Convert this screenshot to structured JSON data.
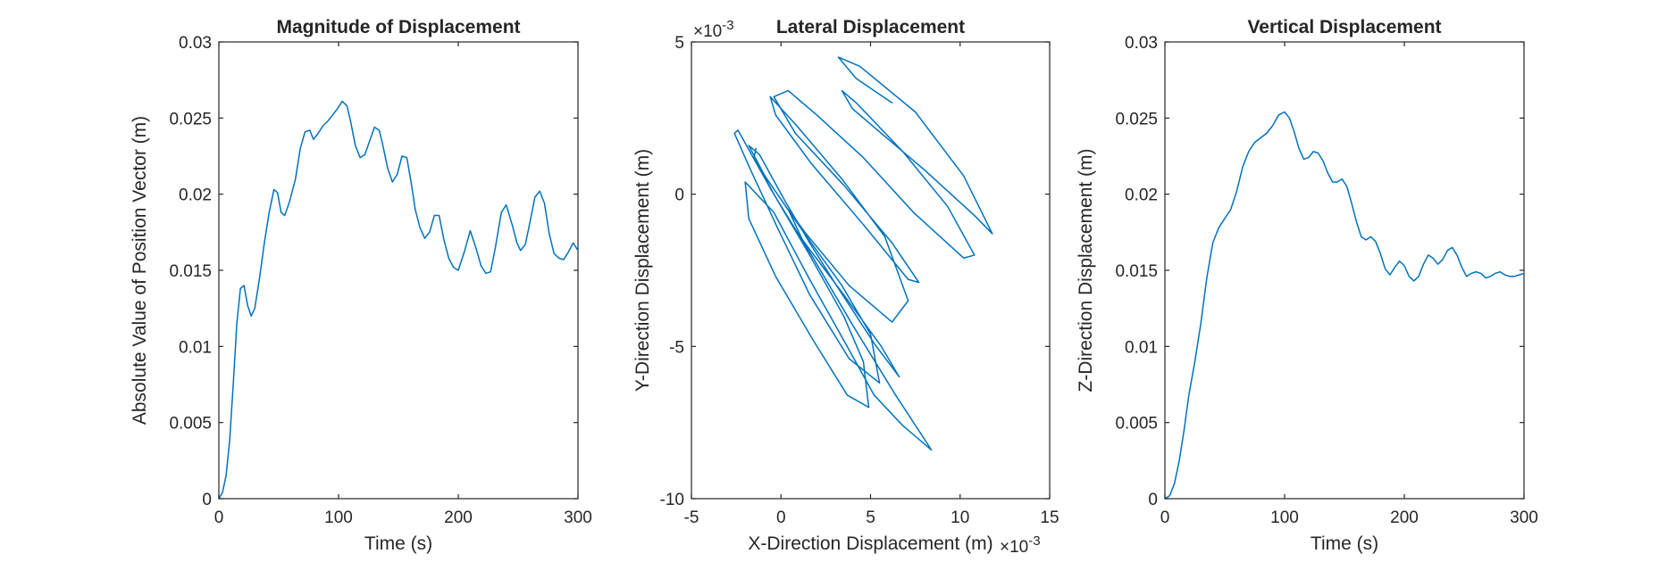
{
  "figure": {
    "series_color": "#0072BD"
  },
  "chart_data": [
    {
      "type": "line",
      "title": "Magnitude of Displacement",
      "xlabel": "Time (s)",
      "ylabel": "Absolute Value of Position Vector (m)",
      "xlim": [
        0,
        300
      ],
      "ylim": [
        0,
        0.03
      ],
      "xticks": [
        0,
        100,
        200,
        300
      ],
      "yticks": [
        0,
        0.005,
        0.01,
        0.015,
        0.02,
        0.025,
        0.03
      ],
      "xtick_labels": [
        "0",
        "100",
        "200",
        "300"
      ],
      "ytick_labels": [
        "0",
        "0.005",
        "0.01",
        "0.015",
        "0.02",
        "0.025",
        "0.03"
      ],
      "series": [
        {
          "x": [
            0,
            3,
            6,
            9,
            12,
            15,
            18,
            21,
            24,
            27,
            30,
            34,
            38,
            42,
            46,
            49,
            52,
            55,
            59,
            64,
            68,
            72,
            76,
            79,
            83,
            87,
            91,
            95,
            99,
            103,
            107,
            110,
            114,
            118,
            122,
            126,
            130,
            134,
            137,
            141,
            145,
            149,
            153,
            157,
            161,
            164,
            168,
            172,
            176,
            180,
            184,
            188,
            192,
            196,
            200,
            205,
            210,
            215,
            219,
            223,
            227,
            231,
            236,
            240,
            245,
            249,
            252,
            256,
            260,
            264,
            268,
            272,
            276,
            280,
            284,
            288,
            292,
            296,
            300
          ],
          "y": [
            0,
            0.0004,
            0.0015,
            0.0038,
            0.0075,
            0.0115,
            0.0138,
            0.014,
            0.0127,
            0.012,
            0.0125,
            0.0145,
            0.0168,
            0.0188,
            0.0203,
            0.0201,
            0.0188,
            0.0186,
            0.0195,
            0.021,
            0.023,
            0.0241,
            0.0242,
            0.0236,
            0.024,
            0.0245,
            0.0248,
            0.0252,
            0.0256,
            0.0261,
            0.0258,
            0.0248,
            0.0232,
            0.0224,
            0.0226,
            0.0235,
            0.0244,
            0.0242,
            0.0232,
            0.0217,
            0.0208,
            0.0213,
            0.0225,
            0.0224,
            0.0206,
            0.019,
            0.0178,
            0.0171,
            0.0175,
            0.0186,
            0.0186,
            0.017,
            0.0158,
            0.0152,
            0.015,
            0.0162,
            0.0176,
            0.0164,
            0.0153,
            0.0148,
            0.0149,
            0.0165,
            0.0188,
            0.0193,
            0.018,
            0.0168,
            0.0163,
            0.0167,
            0.0182,
            0.0198,
            0.0202,
            0.0194,
            0.0174,
            0.0161,
            0.0158,
            0.0157,
            0.0162,
            0.0168,
            0.0163
          ]
        }
      ]
    },
    {
      "type": "line",
      "title": "Lateral Displacement",
      "xlabel": "X-Direction Displacement (m)",
      "ylabel": "Y-Direction Displacement (m)",
      "x_exponent": "×10",
      "x_exponent_power": "-3",
      "y_exponent": "×10",
      "y_exponent_power": "-3",
      "xlim": [
        -5,
        15
      ],
      "ylim": [
        -10,
        5
      ],
      "xticks": [
        -5,
        0,
        5,
        10,
        15
      ],
      "yticks": [
        -10,
        -5,
        0,
        5
      ],
      "xtick_labels": [
        "-5",
        "0",
        "5",
        "10",
        "15"
      ],
      "ytick_labels": [
        "-10",
        "-5",
        "0",
        "5"
      ],
      "series": [
        {
          "x": [
            6.2,
            4.2,
            3.2,
            4.4,
            7.5,
            10.2,
            11.8,
            10.8,
            8.0,
            5.6,
            4.0,
            3.4,
            4.2,
            6.8,
            9.3,
            10.8,
            10.2,
            7.4,
            4.6,
            2.0,
            0.4,
            -0.4,
            0.8,
            3.5,
            6.2,
            7.7,
            7.1,
            4.6,
            1.7,
            -0.3,
            -0.6,
            0.8,
            3.4,
            5.8,
            7.1,
            6.2,
            3.8,
            1.4,
            0.4,
            1.2,
            3.5,
            5.6,
            6.6,
            5.2,
            3.1,
            1.6,
            0.2,
            -1.2,
            -1.8,
            -0.9,
            1.2,
            3.4,
            5.0,
            5.5,
            3.8,
            1.6,
            -0.2,
            -1.7,
            -2.6,
            -2.4,
            -0.6,
            1.6,
            3.5,
            4.6,
            4.9,
            3.7,
            1.8,
            -0.3,
            -1.8,
            -2.0,
            -0.4,
            1.6,
            3.6,
            5.2,
            6.8,
            8.4,
            6.4,
            4.0,
            1.7,
            -0.3,
            -1.5,
            -1.4
          ],
          "y": [
            3.0,
            3.8,
            4.5,
            4.2,
            2.7,
            0.6,
            -1.3,
            -0.7,
            0.8,
            2.0,
            2.8,
            3.4,
            3.0,
            1.4,
            -0.4,
            -2.0,
            -2.1,
            -0.6,
            1.2,
            2.6,
            3.4,
            3.2,
            2.0,
            0.3,
            -1.6,
            -2.9,
            -2.8,
            -1.0,
            1.0,
            2.6,
            3.2,
            2.3,
            0.5,
            -1.4,
            -3.5,
            -4.2,
            -3.0,
            -1.3,
            -0.5,
            -1.5,
            -3.3,
            -5.0,
            -6.0,
            -4.9,
            -3.0,
            -1.6,
            -0.2,
            1.3,
            1.6,
            0.6,
            -1.2,
            -3.0,
            -4.6,
            -6.2,
            -5.4,
            -3.3,
            -1.1,
            0.8,
            2.0,
            2.1,
            0.2,
            -2.0,
            -4.0,
            -5.5,
            -7.0,
            -6.6,
            -4.8,
            -2.7,
            -0.8,
            0.4,
            -0.6,
            -2.8,
            -4.9,
            -6.6,
            -7.6,
            -8.4,
            -6.6,
            -4.3,
            -2.0,
            -0.1,
            1.2,
            1.5
          ]
        }
      ]
    },
    {
      "type": "line",
      "title": "Vertical Displacement",
      "xlabel": "Time (s)",
      "ylabel": "Z-Direction Displacement (m)",
      "xlim": [
        0,
        300
      ],
      "ylim": [
        0,
        0.03
      ],
      "xticks": [
        0,
        100,
        200,
        300
      ],
      "yticks": [
        0,
        0.005,
        0.01,
        0.015,
        0.02,
        0.025,
        0.03
      ],
      "xtick_labels": [
        "0",
        "100",
        "200",
        "300"
      ],
      "ytick_labels": [
        "0",
        "0.005",
        "0.01",
        "0.015",
        "0.02",
        "0.025",
        "0.03"
      ],
      "series": [
        {
          "x": [
            0,
            4,
            8,
            12,
            16,
            20,
            25,
            30,
            35,
            40,
            45,
            50,
            55,
            60,
            65,
            70,
            75,
            80,
            85,
            90,
            95,
            100,
            104,
            108,
            112,
            116,
            120,
            124,
            128,
            132,
            136,
            140,
            144,
            148,
            152,
            156,
            160,
            164,
            168,
            172,
            176,
            180,
            184,
            188,
            192,
            196,
            200,
            204,
            208,
            212,
            216,
            220,
            224,
            228,
            232,
            236,
            240,
            244,
            248,
            252,
            256,
            260,
            264,
            268,
            272,
            276,
            280,
            284,
            288,
            292,
            296,
            300
          ],
          "y": [
            0,
            0.0002,
            0.001,
            0.0025,
            0.0045,
            0.0068,
            0.009,
            0.0115,
            0.0145,
            0.0168,
            0.0178,
            0.0184,
            0.019,
            0.0202,
            0.0218,
            0.0228,
            0.0234,
            0.0237,
            0.024,
            0.0245,
            0.0252,
            0.0254,
            0.025,
            0.0241,
            0.023,
            0.0223,
            0.0224,
            0.0228,
            0.0227,
            0.0222,
            0.0214,
            0.0208,
            0.0208,
            0.021,
            0.0205,
            0.0194,
            0.0182,
            0.0172,
            0.017,
            0.0172,
            0.0169,
            0.0161,
            0.0151,
            0.0147,
            0.0152,
            0.0156,
            0.0153,
            0.0146,
            0.0143,
            0.0146,
            0.0154,
            0.016,
            0.0158,
            0.0154,
            0.0157,
            0.0163,
            0.0165,
            0.016,
            0.0152,
            0.0146,
            0.0148,
            0.0149,
            0.0148,
            0.0145,
            0.0146,
            0.0148,
            0.0149,
            0.0147,
            0.0146,
            0.0146,
            0.0147,
            0.0148
          ]
        }
      ]
    }
  ]
}
